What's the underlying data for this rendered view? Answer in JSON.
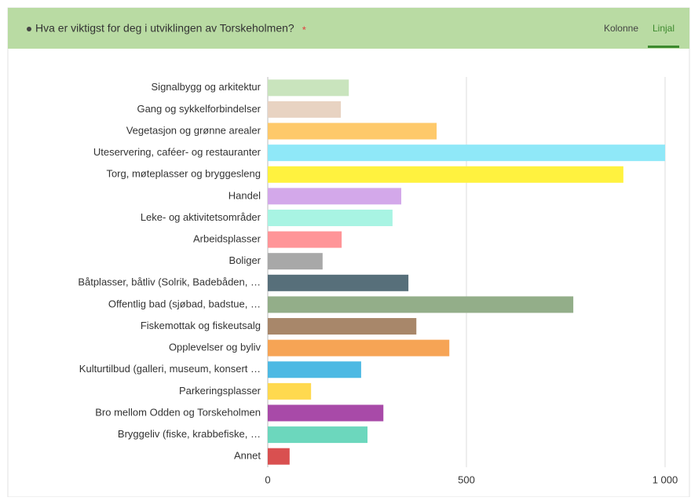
{
  "header": {
    "title": "Hva er viktigst for deg i utviklingen av Torskeholmen?",
    "required": "*",
    "tabs": [
      "Kolonne",
      "Linjal"
    ],
    "active_tab": 1
  },
  "chart_data": {
    "type": "bar",
    "orientation": "horizontal",
    "categories": [
      "Signalbygg og arkitektur",
      "Gang og sykkelforbindelser",
      "Vegetasjon og grønne arealer",
      "Uteservering, caféer- og restauranter",
      "Torg, møteplasser og bryggesleng",
      "Handel",
      "Leke- og aktivitetsområder",
      "Arbeidsplasser",
      "Boliger",
      "Båtplasser, båtliv (Solrik, Badebåden, …",
      "Offentlig bad (sjøbad, badstue, …",
      "Fiskemottak og fiskeutsalg",
      "Opplevelser og byliv",
      "Kulturtilbud (galleri, museum, konsert …",
      "Parkeringsplasser",
      "Bro mellom Odden og Torskeholmen",
      "Bryggeliv (fiske, krabbefiske, …",
      "Annet"
    ],
    "values": [
      204,
      184,
      425,
      1000,
      895,
      336,
      314,
      186,
      138,
      354,
      769,
      374,
      457,
      235,
      109,
      291,
      251,
      55
    ],
    "colors": [
      "#c9e4bd",
      "#e8d3c2",
      "#fec96a",
      "#8fe8f8",
      "#fff23f",
      "#d3a8ea",
      "#a8f4e3",
      "#ff9598",
      "#a8a8a8",
      "#576f7a",
      "#93ae89",
      "#a8876a",
      "#f6a455",
      "#4db9e3",
      "#ffd94f",
      "#a84aa8",
      "#6cd7bd",
      "#d95050"
    ],
    "xlim": [
      0,
      1000
    ],
    "xticks": [
      0,
      500,
      {
        "value": 1000,
        "label": "1 000"
      }
    ],
    "grid": true
  }
}
